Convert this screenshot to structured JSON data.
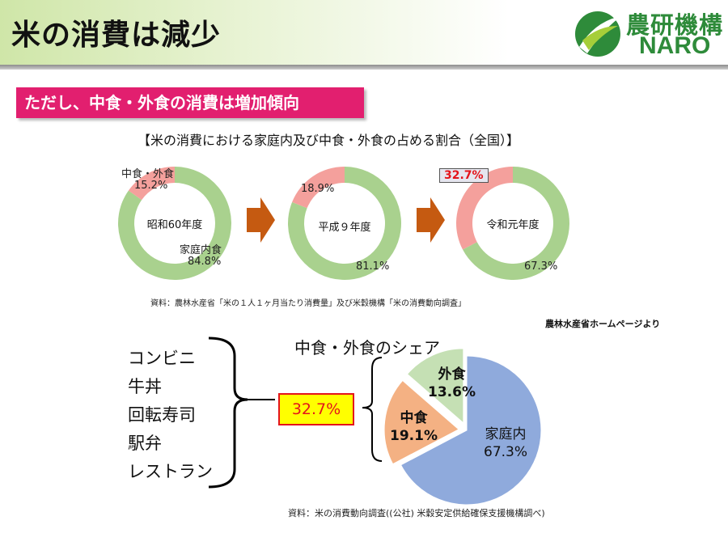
{
  "header": {
    "title": "米の消費は減少"
  },
  "logo": {
    "text_jp": "農研機構",
    "text_en": "NARO"
  },
  "subtitle": "ただし、中食・外食の消費は増加傾向",
  "chart_title": "【米の消費における家庭内及び中食・外食の占める割合（全国）】",
  "chart_data": [
    {
      "type": "pie",
      "center_label": "昭和60年度",
      "categories": [
        "家庭内食",
        "中食・外食"
      ],
      "values": [
        84.8,
        15.2
      ],
      "value_labels": [
        "84.8%",
        "15.2%"
      ],
      "colors": [
        "#a9d18e",
        "#f4a09c"
      ]
    },
    {
      "type": "pie",
      "center_label": "平成９年度",
      "categories": [
        "家庭内食",
        "中食・外食"
      ],
      "values": [
        81.1,
        18.9
      ],
      "value_labels": [
        "81.1%",
        "18.9%"
      ],
      "colors": [
        "#a9d18e",
        "#f4a09c"
      ]
    },
    {
      "type": "pie",
      "center_label": "令和元年度",
      "categories": [
        "家庭内食",
        "中食・外食"
      ],
      "values": [
        67.3,
        32.7
      ],
      "value_labels": [
        "67.3%",
        "32.7%"
      ],
      "colors": [
        "#a9d18e",
        "#f4a09c"
      ]
    },
    {
      "type": "pie",
      "title": "中食・外食のシェア",
      "categories": [
        "家庭内",
        "中食",
        "外食"
      ],
      "values": [
        67.3,
        19.1,
        13.6
      ],
      "value_labels": [
        "67.3%",
        "19.1%",
        "13.6%"
      ],
      "colors": [
        "#8faadc",
        "#f4b183",
        "#c5e0b4"
      ]
    }
  ],
  "labels": {
    "donut1_outer": "中食・外食",
    "donut1_home": "家庭内食"
  },
  "source1": "資料：農林水産省「米の１人１ヶ月当たり消費量」及び米穀機構「米の消費動向調査」",
  "note": "農林水産省ホームページより",
  "stores": [
    "コンビニ",
    "牛丼",
    "回転寿司",
    "駅弁",
    "レストラン"
  ],
  "share_total": "32.7%",
  "source2": "資料：米の消費動向調査((公社) 米穀安定供給確保支援機構調べ)"
}
